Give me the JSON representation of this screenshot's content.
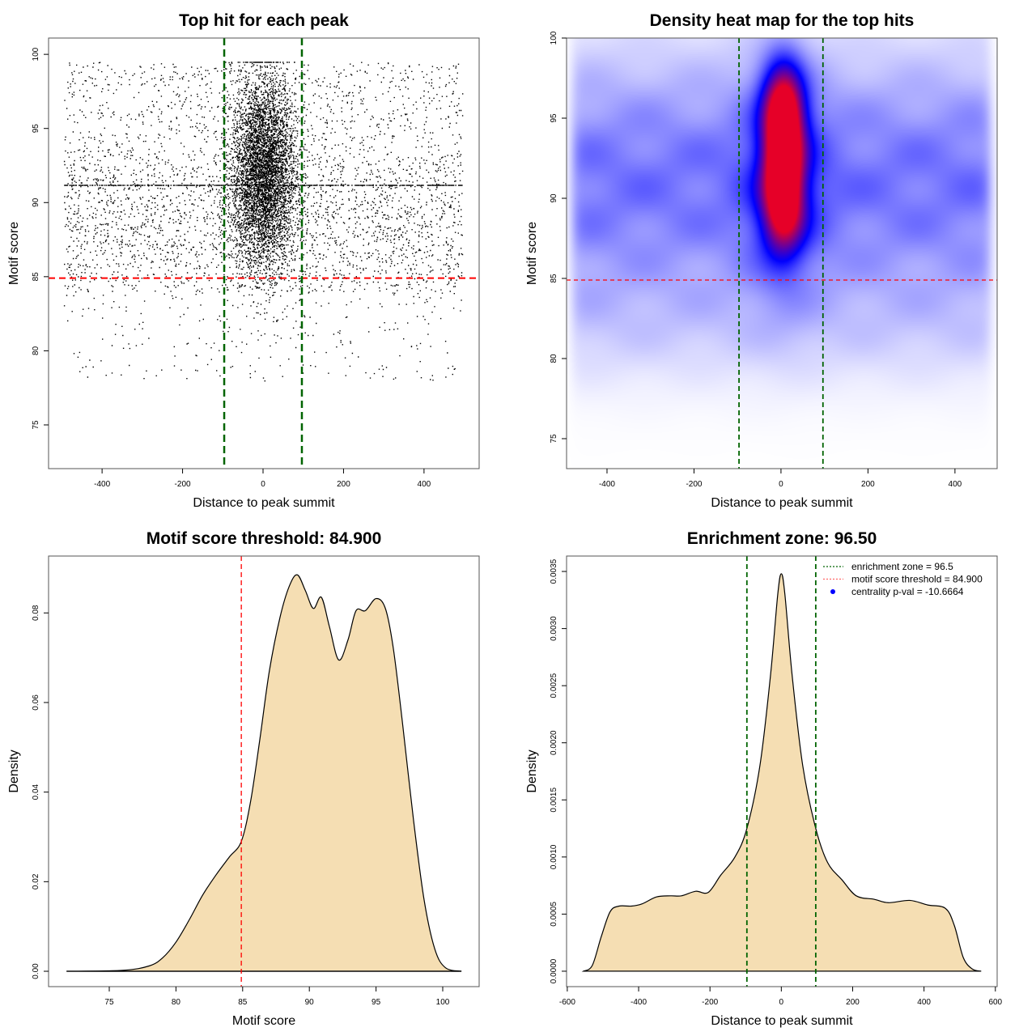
{
  "chart_data": [
    {
      "type": "scatter",
      "title": "Top hit for each peak",
      "xlabel": "Distance to peak summit",
      "ylabel": "Motif score",
      "xlim": [
        -533,
        537
      ],
      "ylim": [
        72.05,
        101.1
      ],
      "xticks": [
        {
          "v": -400,
          "label": "-400"
        },
        {
          "v": -200,
          "label": "-200"
        },
        {
          "v": 0,
          "label": "0"
        },
        {
          "v": 200,
          "label": "200"
        },
        {
          "v": 400,
          "label": "400"
        }
      ],
      "yticks": [
        {
          "v": 75,
          "label": "75"
        },
        {
          "v": 80,
          "label": "80"
        },
        {
          "v": 85,
          "label": "85"
        },
        {
          "v": 90,
          "label": "90"
        },
        {
          "v": 95,
          "label": "95"
        },
        {
          "v": 100,
          "label": "100"
        }
      ],
      "vlines": [
        {
          "x": -96.5,
          "color": "#006400"
        },
        {
          "x": 96.5,
          "color": "#006400"
        }
      ],
      "hlines": [
        {
          "y": 84.9,
          "color": "#FF0000"
        }
      ],
      "points_summary": {
        "n_background": 9000,
        "n_central": 5500,
        "x_range": [
          -495,
          495
        ],
        "central_x_sd": 40,
        "central_y_mean": 92,
        "central_y_sd": 3.2,
        "y_max": 99.5,
        "repeated_score": 91.2
      }
    },
    {
      "type": "heatmap",
      "title": "Density heat map for the top hits",
      "xlabel": "Distance to peak summit",
      "ylabel": "Motif score",
      "xlim": [
        -493,
        497
      ],
      "ylim": [
        73.13,
        100
      ],
      "xticks": [
        {
          "v": -400,
          "label": "-400"
        },
        {
          "v": -200,
          "label": "-200"
        },
        {
          "v": 0,
          "label": "0"
        },
        {
          "v": 200,
          "label": "200"
        },
        {
          "v": 400,
          "label": "400"
        }
      ],
      "yticks": [
        {
          "v": 75,
          "label": "75"
        },
        {
          "v": 80,
          "label": "80"
        },
        {
          "v": 85,
          "label": "85"
        },
        {
          "v": 90,
          "label": "90"
        },
        {
          "v": 95,
          "label": "95"
        },
        {
          "v": 100,
          "label": "100"
        }
      ],
      "vlines": [
        {
          "x": -96.5,
          "color": "#006400"
        },
        {
          "x": 96.5,
          "color": "#006400"
        }
      ],
      "hlines": [
        {
          "y": 84.9,
          "color": "#FF0000"
        }
      ],
      "colors": {
        "low": "#FFFFFF",
        "mid": "#0000FF",
        "high": "#FF0000"
      },
      "density_blobs": [
        {
          "x": 5,
          "y": 95.5,
          "sx": 32,
          "sy": 2.0,
          "w": 1.0
        },
        {
          "x": 5,
          "y": 89.6,
          "sx": 32,
          "sy": 2.0,
          "w": 0.85
        },
        {
          "x": 5,
          "y": 92.5,
          "sx": 30,
          "sy": 1.6,
          "w": 0.55
        },
        {
          "x": 5,
          "y": 91.5,
          "sx": 60,
          "sy": 5.0,
          "w": 0.25
        }
      ]
    },
    {
      "type": "area",
      "title": "Motif score threshold: 84.900",
      "xlabel": "Motif score",
      "ylabel": "Density",
      "xlim": [
        70.45,
        102.73
      ],
      "ylim": [
        -0.00343,
        0.0927
      ],
      "xticks": [
        {
          "v": 75,
          "label": "75"
        },
        {
          "v": 80,
          "label": "80"
        },
        {
          "v": 85,
          "label": "85"
        },
        {
          "v": 90,
          "label": "90"
        },
        {
          "v": 95,
          "label": "95"
        },
        {
          "v": 100,
          "label": "100"
        }
      ],
      "yticks": [
        {
          "v": 0,
          "label": "0.00"
        },
        {
          "v": 0.02,
          "label": "0.02"
        },
        {
          "v": 0.04,
          "label": "0.04"
        },
        {
          "v": 0.06,
          "label": "0.06"
        },
        {
          "v": 0.08,
          "label": "0.08"
        }
      ],
      "vlines": [
        {
          "x": 84.9,
          "color": "#FF0000"
        }
      ],
      "fill": "#F5DEB3",
      "x": [
        71.8,
        76,
        78,
        79,
        80,
        81,
        82,
        83,
        84,
        84.9,
        85.6,
        86.3,
        87,
        87.8,
        88.5,
        89.1,
        89.7,
        90.3,
        90.9,
        91.5,
        92.2,
        92.9,
        93.5,
        94.2,
        95.0,
        95.7,
        96.3,
        97,
        97.8,
        98.6,
        99.4,
        100.2,
        101.4
      ],
      "y": [
        0,
        0.0002,
        0.0012,
        0.003,
        0.0065,
        0.0115,
        0.017,
        0.0215,
        0.0255,
        0.029,
        0.038,
        0.052,
        0.067,
        0.079,
        0.086,
        0.0885,
        0.085,
        0.081,
        0.0835,
        0.077,
        0.0695,
        0.074,
        0.0805,
        0.0805,
        0.0832,
        0.081,
        0.072,
        0.055,
        0.034,
        0.016,
        0.005,
        0.0008,
        0
      ]
    },
    {
      "type": "area",
      "title": "Enrichment zone: 96.50",
      "xlabel": "Distance to peak summit",
      "ylabel": "Density",
      "xlim": [
        -602,
        605
      ],
      "ylim": [
        -0.000135,
        0.003635
      ],
      "xticks": [
        {
          "v": -600,
          "label": "-600"
        },
        {
          "v": -400,
          "label": "-400"
        },
        {
          "v": -200,
          "label": "-200"
        },
        {
          "v": 0,
          "label": "0"
        },
        {
          "v": 200,
          "label": "200"
        },
        {
          "v": 400,
          "label": "400"
        },
        {
          "v": 600,
          "label": "600"
        }
      ],
      "yticks": [
        {
          "v": 0,
          "label": "0.0000"
        },
        {
          "v": 0.0005,
          "label": "0.0005"
        },
        {
          "v": 0.001,
          "label": "0.0010"
        },
        {
          "v": 0.0015,
          "label": "0.0015"
        },
        {
          "v": 0.002,
          "label": "0.0020"
        },
        {
          "v": 0.0025,
          "label": "0.0025"
        },
        {
          "v": 0.003,
          "label": "0.0030"
        },
        {
          "v": 0.0035,
          "label": "0.0035"
        }
      ],
      "vlines": [
        {
          "x": -96.5,
          "color": "#006400"
        },
        {
          "x": 96.5,
          "color": "#006400"
        }
      ],
      "fill": "#F5DEB3",
      "x": [
        -555,
        -530,
        -505,
        -480,
        -455,
        -420,
        -390,
        -350,
        -310,
        -280,
        -240,
        -205,
        -170,
        -130,
        -96.5,
        -60,
        -30,
        -10,
        0,
        10,
        30,
        60,
        96.5,
        130,
        170,
        210,
        260,
        300,
        360,
        410,
        460,
        485,
        510,
        535,
        560
      ],
      "y": [
        0,
        5e-05,
        0.0003,
        0.00052,
        0.00057,
        0.00057,
        0.00059,
        0.00065,
        0.00066,
        0.00066,
        0.0007,
        0.00069,
        0.00084,
        0.001,
        0.00125,
        0.0018,
        0.0026,
        0.0033,
        0.00348,
        0.0033,
        0.0026,
        0.0018,
        0.00125,
        0.00095,
        0.0008,
        0.00066,
        0.00063,
        0.0006,
        0.00062,
        0.00058,
        0.00055,
        0.0004,
        0.00012,
        2e-05,
        0
      ],
      "legend": {
        "position": "top-right",
        "items": [
          {
            "label": "enrichment zone = 96.5",
            "color": "#006400",
            "style": "dotted-line"
          },
          {
            "label": "motif score threshold = 84.900",
            "color": "#FF6666",
            "style": "dotted-line"
          },
          {
            "label": "centrality p-val = -10.6664",
            "color": "#0000FF",
            "style": "point"
          }
        ]
      }
    }
  ]
}
